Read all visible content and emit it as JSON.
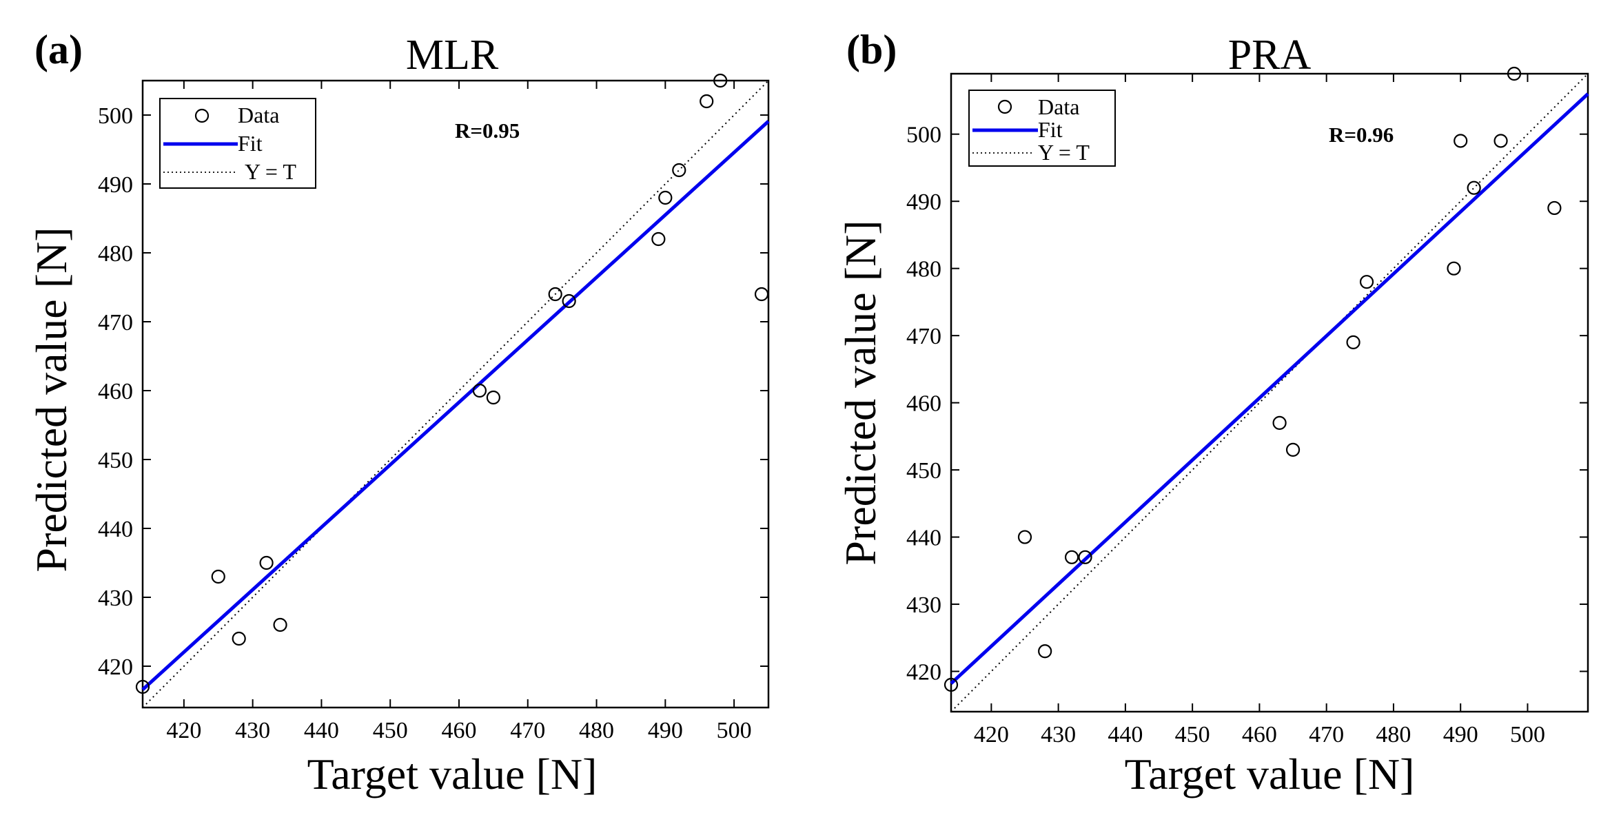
{
  "chart_data": [
    {
      "type": "scatter",
      "panel_label": "(a)",
      "title": "MLR",
      "xlabel": "Target value [N]",
      "ylabel": "Predicted value [N]",
      "annotation": "R=0.95",
      "xlim": [
        414,
        505
      ],
      "ylim": [
        414,
        505
      ],
      "xticks": [
        420,
        430,
        440,
        450,
        460,
        470,
        480,
        490,
        500
      ],
      "yticks": [
        420,
        430,
        440,
        450,
        460,
        470,
        480,
        490,
        500
      ],
      "grid": false,
      "legend_position": "top-left",
      "legend": [
        "Data",
        "Fit",
        "Y = T"
      ],
      "data": {
        "x": [
          414,
          425,
          428,
          432,
          434,
          463,
          465,
          474,
          476,
          489,
          490,
          492,
          496,
          498,
          504
        ],
        "y": [
          417,
          433,
          424,
          435,
          426,
          460,
          459,
          474,
          473,
          482,
          488,
          492,
          502,
          505,
          474
        ]
      },
      "fit": {
        "x": [
          414,
          505
        ],
        "y": [
          416.6,
          499.1
        ]
      },
      "identity": {
        "x": [
          414,
          505
        ],
        "y": [
          414,
          505
        ]
      },
      "colors": {
        "fit": "#0000ee",
        "data": "#000000",
        "identity": "#000000"
      }
    },
    {
      "type": "scatter",
      "panel_label": "(b)",
      "title": "PRA",
      "xlabel": "Target value [N]",
      "ylabel": "Predicted value [N]",
      "annotation": "R=0.96",
      "xlim": [
        414,
        509
      ],
      "ylim": [
        414,
        509
      ],
      "xticks": [
        420,
        430,
        440,
        450,
        460,
        470,
        480,
        490,
        500
      ],
      "yticks": [
        420,
        430,
        440,
        450,
        460,
        470,
        480,
        490,
        500
      ],
      "grid": false,
      "legend_position": "top-left",
      "legend": [
        "Data",
        "Fit",
        "Y = T"
      ],
      "data": {
        "x": [
          414,
          425,
          428,
          432,
          434,
          463,
          465,
          474,
          476,
          489,
          490,
          492,
          496,
          498,
          504
        ],
        "y": [
          418,
          440,
          423,
          437,
          437,
          457,
          453,
          469,
          478,
          480,
          499,
          492,
          499,
          509,
          489
        ]
      },
      "fit": {
        "x": [
          414,
          509
        ],
        "y": [
          418.2,
          506
        ]
      },
      "identity": {
        "x": [
          414,
          509
        ],
        "y": [
          414,
          509
        ]
      },
      "colors": {
        "fit": "#0000ee",
        "data": "#000000",
        "identity": "#000000"
      }
    }
  ]
}
